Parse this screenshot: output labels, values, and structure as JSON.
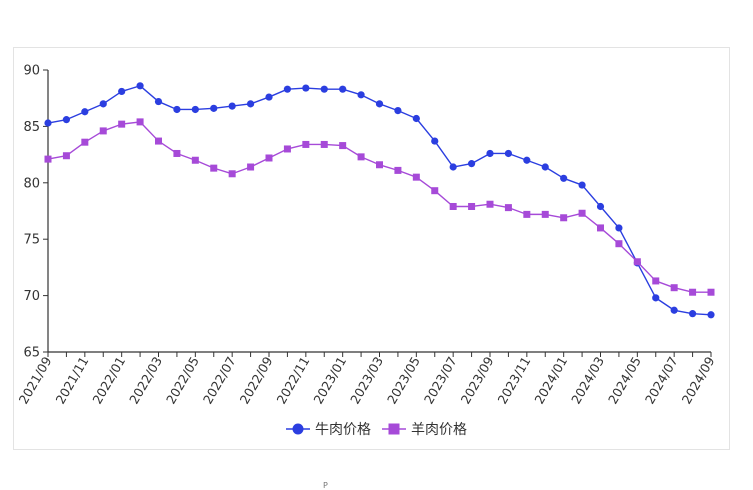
{
  "chart_data": {
    "type": "line",
    "title": "",
    "xlabel": "",
    "ylabel": "",
    "ylim": [
      65,
      90
    ],
    "yticks": [
      65,
      70,
      75,
      80,
      85,
      90
    ],
    "grid": false,
    "legend_position": "bottom-center",
    "categories": [
      "2021/09",
      "2021/10",
      "2021/11",
      "2021/12",
      "2022/01",
      "2022/02",
      "2022/03",
      "2022/04",
      "2022/05",
      "2022/06",
      "2022/07",
      "2022/08",
      "2022/09",
      "2022/10",
      "2022/11",
      "2022/12",
      "2023/01",
      "2023/02",
      "2023/03",
      "2023/04",
      "2023/05",
      "2023/06",
      "2023/07",
      "2023/08",
      "2023/09",
      "2023/10",
      "2023/11",
      "2023/12",
      "2024/01",
      "2024/02",
      "2024/03",
      "2024/04",
      "2024/05",
      "2024/06",
      "2024/07",
      "2024/08",
      "2024/09"
    ],
    "xtick_labels": [
      "2021/09",
      "2021/11",
      "2022/01",
      "2022/03",
      "2022/05",
      "2022/07",
      "2022/09",
      "2022/11",
      "2023/01",
      "2023/03",
      "2023/05",
      "2023/07",
      "2023/09",
      "2023/11",
      "2024/01",
      "2024/03",
      "2024/05",
      "2024/07",
      "2024/09"
    ],
    "series": [
      {
        "name": "牛肉价格",
        "color": "#2b3ee0",
        "marker": "circle",
        "values": [
          85.3,
          85.6,
          86.3,
          87.0,
          88.1,
          88.6,
          87.2,
          86.5,
          86.5,
          86.6,
          86.8,
          87.0,
          87.6,
          88.3,
          88.4,
          88.3,
          88.3,
          87.8,
          87.0,
          86.4,
          85.7,
          83.7,
          81.4,
          81.7,
          82.6,
          82.6,
          82.0,
          81.4,
          80.4,
          79.8,
          77.9,
          76.0,
          72.9,
          69.8,
          68.7,
          68.4,
          68.3
        ]
      },
      {
        "name": "羊肉价格",
        "color": "#a64ad8",
        "marker": "square",
        "values": [
          82.1,
          82.4,
          83.6,
          84.6,
          85.2,
          85.4,
          83.7,
          82.6,
          82.0,
          81.3,
          80.8,
          81.4,
          82.2,
          83.0,
          83.4,
          83.4,
          83.3,
          82.3,
          81.6,
          81.1,
          80.5,
          79.3,
          77.9,
          77.9,
          78.1,
          77.8,
          77.2,
          77.2,
          76.9,
          77.3,
          76.0,
          74.6,
          73.0,
          71.3,
          70.7,
          70.3,
          70.3
        ]
      }
    ]
  },
  "footer_mark": "P"
}
